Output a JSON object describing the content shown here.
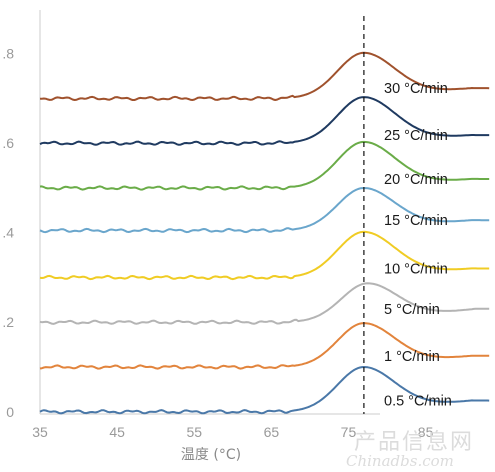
{
  "chart_data": {
    "type": "line",
    "title": "",
    "xlabel": "温度 (°C)",
    "ylabel": "",
    "xlim": [
      35,
      94
    ],
    "ylim": [
      -0.005,
      0.92
    ],
    "x_ticks": [
      35,
      45,
      55,
      65,
      75,
      85
    ],
    "y_ticks": [
      0,
      0.2,
      0.4,
      0.6,
      0.8
    ],
    "y_tick_labels": [
      "0",
      ".2",
      ".4",
      ".6",
      ".8"
    ],
    "reference_line": {
      "x": 77,
      "style": "dashed",
      "color": "#111111"
    },
    "grid": false,
    "legend": "inline labels at right end of each curve",
    "series": [
      {
        "name": "30 °C/min",
        "color": "#a0522d",
        "baseline": 0.7,
        "peak": 0.802,
        "peak_x": 77.0,
        "end": 0.723
      },
      {
        "name": "25 °C/min",
        "color": "#1f3a60",
        "baseline": 0.6,
        "peak": 0.703,
        "peak_x": 77.0,
        "end": 0.618
      },
      {
        "name": "20 °C/min",
        "color": "#6aac48",
        "baseline": 0.5,
        "peak": 0.603,
        "peak_x": 77.0,
        "end": 0.52
      },
      {
        "name": "15 °C/min",
        "color": "#6aa6cc",
        "baseline": 0.405,
        "peak": 0.5,
        "peak_x": 77.0,
        "end": 0.428
      },
      {
        "name": "10 °C/min",
        "color": "#f0cc24",
        "baseline": 0.3,
        "peak": 0.402,
        "peak_x": 77.0,
        "end": 0.32
      },
      {
        "name": "5 °C/min",
        "color": "#b4b4b4",
        "baseline": 0.2,
        "peak": 0.287,
        "peak_x": 77.5,
        "end": 0.23
      },
      {
        "name": "1 °C/min",
        "color": "#e2843c",
        "baseline": 0.1,
        "peak": 0.198,
        "peak_x": 77.0,
        "end": 0.125
      },
      {
        "name": "0.5 °C/min",
        "color": "#4a78a8",
        "baseline": 0.0,
        "peak": 0.1,
        "peak_x": 77.0,
        "end": 0.025
      }
    ]
  },
  "watermark": {
    "cn": "产品信息网",
    "en": "Chinadbs.com"
  }
}
